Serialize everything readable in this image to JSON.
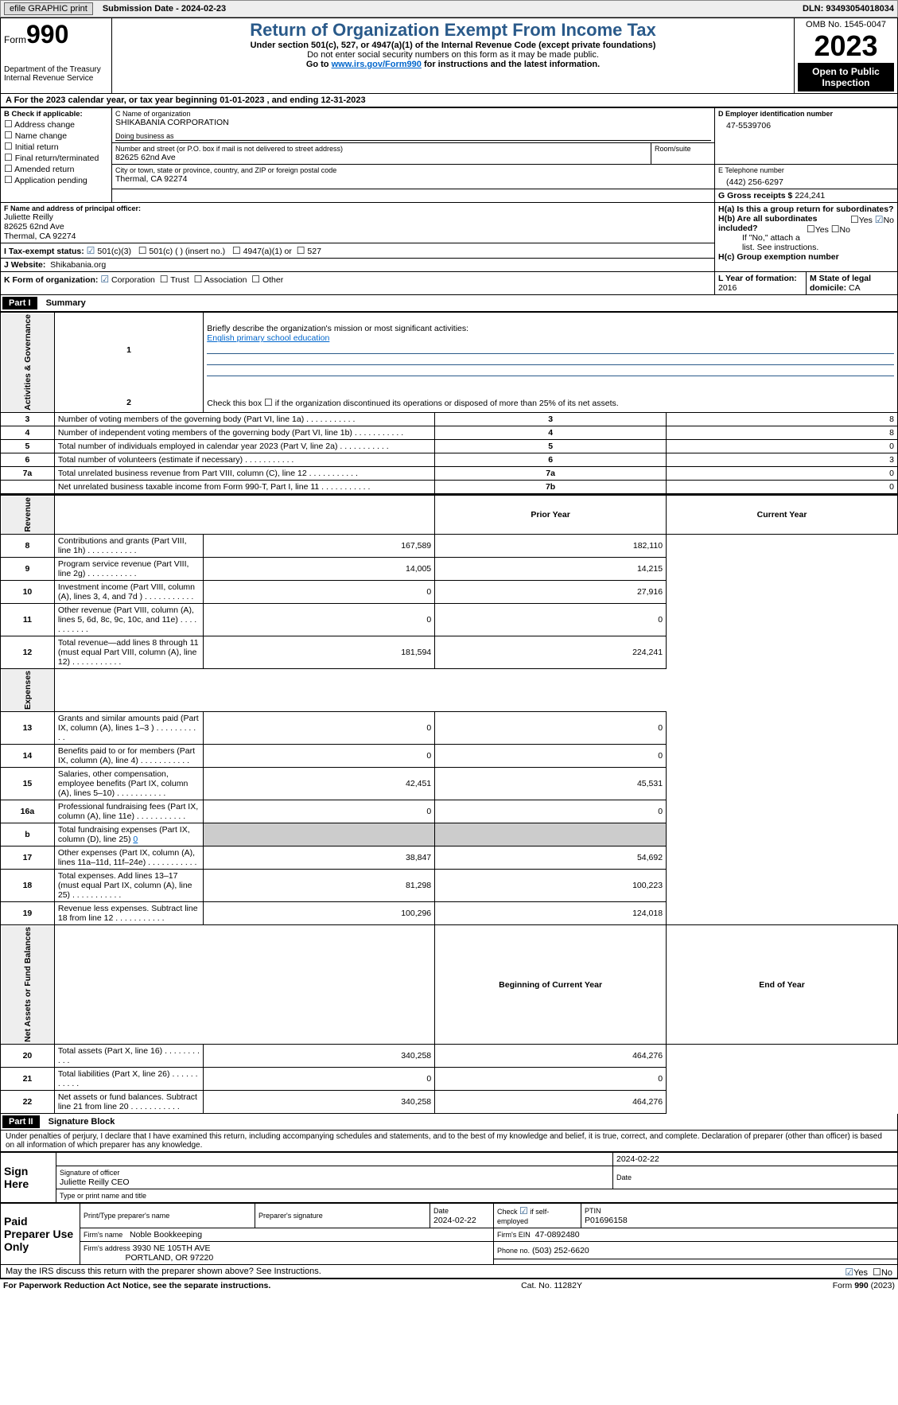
{
  "topbar": {
    "efile": "efile GRAPHIC print",
    "submission": "Submission Date - 2024-02-23",
    "dln": "DLN: 93493054018034"
  },
  "header": {
    "form_prefix": "Form",
    "form_num": "990",
    "dept": "Department of the Treasury\nInternal Revenue Service",
    "title": "Return of Organization Exempt From Income Tax",
    "sub1": "Under section 501(c), 527, or 4947(a)(1) of the Internal Revenue Code (except private foundations)",
    "sub2": "Do not enter social security numbers on this form as it may be made public.",
    "sub3_pre": "Go to ",
    "sub3_link": "www.irs.gov/Form990",
    "sub3_post": " for instructions and the latest information.",
    "omb": "OMB No. 1545-0047",
    "year": "2023",
    "open": "Open to Public Inspection"
  },
  "sectionA": "A For the 2023 calendar year, or tax year beginning 01-01-2023    , and ending 12-31-2023",
  "boxB": {
    "label": "B Check if applicable:",
    "items": [
      "Address change",
      "Name change",
      "Initial return",
      "Final return/terminated",
      "Amended return",
      "Application pending"
    ]
  },
  "boxC": {
    "name_lbl": "C Name of organization",
    "name": "SHIKABANIA CORPORATION",
    "dba_lbl": "Doing business as",
    "addr_lbl": "Number and street (or P.O. box if mail is not delivered to street address)",
    "room_lbl": "Room/suite",
    "addr": "82625 62nd Ave",
    "city_lbl": "City or town, state or province, country, and ZIP or foreign postal code",
    "city": "Thermal, CA  92274"
  },
  "boxD": {
    "lbl": "D Employer identification number",
    "val": "47-5539706"
  },
  "boxE": {
    "lbl": "E Telephone number",
    "val": "(442) 256-6297"
  },
  "boxG": {
    "lbl": "G Gross receipts $",
    "val": "224,241"
  },
  "boxF": {
    "lbl": "F  Name and address of principal officer:",
    "name": "Juliette Reilly",
    "addr1": "82625 62nd Ave",
    "addr2": "Thermal, CA  92274"
  },
  "boxH": {
    "a_lbl": "H(a)  Is this a group return for subordinates?",
    "b_lbl": "H(b)  Are all subordinates included?",
    "note": "If \"No,\" attach a list. See instructions.",
    "c_lbl": "H(c)  Group exemption number",
    "yes": "Yes",
    "no": "No"
  },
  "boxI": {
    "lbl": "I   Tax-exempt status:",
    "opts": [
      "501(c)(3)",
      "501(c) (  ) (insert no.)",
      "4947(a)(1) or",
      "527"
    ]
  },
  "boxJ": {
    "lbl": "J   Website:",
    "val": "Shikabania.org"
  },
  "boxK": {
    "lbl": "K Form of organization:",
    "opts": [
      "Corporation",
      "Trust",
      "Association",
      "Other"
    ]
  },
  "boxL": {
    "lbl": "L Year of formation:",
    "val": "2016"
  },
  "boxM": {
    "lbl": "M State of legal domicile:",
    "val": "CA"
  },
  "part1": {
    "hdr": "Part I",
    "title": "Summary"
  },
  "summary": {
    "q1_lbl": "Briefly describe the organization's mission or most significant activities:",
    "q1_val": "English primary school education",
    "q2": "Check this box      if the organization discontinued its operations or disposed of more than 25% of its net assets.",
    "governance_lbl": "Activities & Governance",
    "revenue_lbl": "Revenue",
    "expenses_lbl": "Expenses",
    "netassets_lbl": "Net Assets or Fund Balances",
    "rows_gov": [
      {
        "n": "3",
        "t": "Number of voting members of the governing body (Part VI, line 1a)",
        "c": "3",
        "v": "8"
      },
      {
        "n": "4",
        "t": "Number of independent voting members of the governing body (Part VI, line 1b)",
        "c": "4",
        "v": "8"
      },
      {
        "n": "5",
        "t": "Total number of individuals employed in calendar year 2023 (Part V, line 2a)",
        "c": "5",
        "v": "0"
      },
      {
        "n": "6",
        "t": "Total number of volunteers (estimate if necessary)",
        "c": "6",
        "v": "3"
      },
      {
        "n": "7a",
        "t": "Total unrelated business revenue from Part VIII, column (C), line 12",
        "c": "7a",
        "v": "0"
      },
      {
        "n": "",
        "t": "Net unrelated business taxable income from Form 990-T, Part I, line 11",
        "c": "7b",
        "v": "0"
      }
    ],
    "prior_hdr": "Prior Year",
    "curr_hdr": "Current Year",
    "rows_rev": [
      {
        "n": "8",
        "t": "Contributions and grants (Part VIII, line 1h)",
        "p": "167,589",
        "c": "182,110"
      },
      {
        "n": "9",
        "t": "Program service revenue (Part VIII, line 2g)",
        "p": "14,005",
        "c": "14,215"
      },
      {
        "n": "10",
        "t": "Investment income (Part VIII, column (A), lines 3, 4, and 7d )",
        "p": "0",
        "c": "27,916"
      },
      {
        "n": "11",
        "t": "Other revenue (Part VIII, column (A), lines 5, 6d, 8c, 9c, 10c, and 11e)",
        "p": "0",
        "c": "0"
      },
      {
        "n": "12",
        "t": "Total revenue—add lines 8 through 11 (must equal Part VIII, column (A), line 12)",
        "p": "181,594",
        "c": "224,241"
      }
    ],
    "rows_exp": [
      {
        "n": "13",
        "t": "Grants and similar amounts paid (Part IX, column (A), lines 1–3 )",
        "p": "0",
        "c": "0"
      },
      {
        "n": "14",
        "t": "Benefits paid to or for members (Part IX, column (A), line 4)",
        "p": "0",
        "c": "0"
      },
      {
        "n": "15",
        "t": "Salaries, other compensation, employee benefits (Part IX, column (A), lines 5–10)",
        "p": "42,451",
        "c": "45,531"
      },
      {
        "n": "16a",
        "t": "Professional fundraising fees (Part IX, column (A), line 11e)",
        "p": "0",
        "c": "0"
      }
    ],
    "row16b": {
      "n": "b",
      "t": "Total fundraising expenses (Part IX, column (D), line 25)",
      "v": "0"
    },
    "rows_exp2": [
      {
        "n": "17",
        "t": "Other expenses (Part IX, column (A), lines 11a–11d, 11f–24e)",
        "p": "38,847",
        "c": "54,692"
      },
      {
        "n": "18",
        "t": "Total expenses. Add lines 13–17 (must equal Part IX, column (A), line 25)",
        "p": "81,298",
        "c": "100,223"
      },
      {
        "n": "19",
        "t": "Revenue less expenses. Subtract line 18 from line 12",
        "p": "100,296",
        "c": "124,018"
      }
    ],
    "begin_hdr": "Beginning of Current Year",
    "end_hdr": "End of Year",
    "rows_net": [
      {
        "n": "20",
        "t": "Total assets (Part X, line 16)",
        "p": "340,258",
        "c": "464,276"
      },
      {
        "n": "21",
        "t": "Total liabilities (Part X, line 26)",
        "p": "0",
        "c": "0"
      },
      {
        "n": "22",
        "t": "Net assets or fund balances. Subtract line 21 from line 20",
        "p": "340,258",
        "c": "464,276"
      }
    ]
  },
  "part2": {
    "hdr": "Part II",
    "title": "Signature Block"
  },
  "penalty": "Under penalties of perjury, I declare that I have examined this return, including accompanying schedules and statements, and to the best of my knowledge and belief, it is true, correct, and complete. Declaration of preparer (other than officer) is based on all information of which preparer has any knowledge.",
  "sign": {
    "here_lbl": "Sign Here",
    "date1": "2024-02-22",
    "sig_lbl": "Signature of officer",
    "date_lbl": "Date",
    "name": "Juliette Reilly CEO",
    "type_lbl": "Type or print name and title",
    "paid_lbl": "Paid Preparer Use Only",
    "prep_name_lbl": "Print/Type preparer's name",
    "prep_sig_lbl": "Preparer's signature",
    "prep_date": "2024-02-22",
    "self_emp": "Check         if self-employed",
    "ptin_lbl": "PTIN",
    "ptin": "P01696158",
    "firm_name_lbl": "Firm's name",
    "firm_name": "Noble Bookkeeping",
    "firm_ein_lbl": "Firm's EIN",
    "firm_ein": "47-0892480",
    "firm_addr_lbl": "Firm's address",
    "firm_addr1": "3930 NE 105TH AVE",
    "firm_addr2": "PORTLAND, OR  97220",
    "phone_lbl": "Phone no.",
    "phone": "(503) 252-6620",
    "discuss": "May the IRS discuss this return with the preparer shown above? See Instructions."
  },
  "footer": {
    "paperwork": "For Paperwork Reduction Act Notice, see the separate instructions.",
    "catno": "Cat. No. 11282Y",
    "formno": "Form 990 (2023)"
  }
}
